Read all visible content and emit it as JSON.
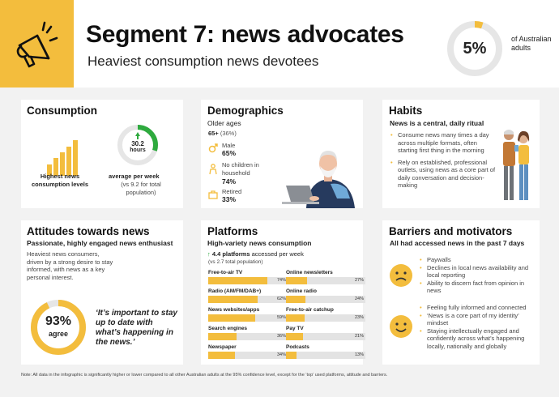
{
  "header": {
    "icon": "megaphone-icon",
    "title": "Segment 7: news advocates",
    "subtitle": "Heaviest consumption news devotees",
    "share_value": "5%",
    "share_fraction": 0.05,
    "share_label": "of Australian adults"
  },
  "consumption": {
    "title": "Consumption",
    "bars_icon": "rising-bars-icon",
    "levels_label": "Highest news consumption levels",
    "hours_value": "30.2",
    "hours_unit": "hours",
    "hours_fraction": 0.3,
    "week_label": "average per week",
    "week_compare": "(vs 9.2 for total population)"
  },
  "demographics": {
    "title": "Demographics",
    "subtitle": "Older ages",
    "age_group": "65+",
    "age_pct": "(36%)",
    "male_label": "Male",
    "male_value": "65%",
    "children_label": "No children in household",
    "children_value": "74%",
    "retired_label": "Retired",
    "retired_value": "33%"
  },
  "habits": {
    "title": "Habits",
    "subtitle": "News is a central, daily ritual",
    "bullets": [
      "Consume news many times a day across multiple formats, often starting first thing in the morning",
      "Rely on established, professional outlets, using news as a core part of daily conversation and decision-making"
    ]
  },
  "attitudes": {
    "title": "Attitudes towards news",
    "subtitle": "Passionate, highly engaged news enthusiast",
    "body": "Heaviest news consumers, driven by a strong desire to stay informed, with news as a key personal interest.",
    "agree_value": "93%",
    "agree_label": "agree",
    "agree_fraction": 0.93,
    "quote": "‘It’s important to stay up to date with what’s happening in the news.’"
  },
  "platforms": {
    "title": "Platforms",
    "subtitle": "High-variety news consumption",
    "count_value": "4.4 platforms",
    "count_text": "accessed per week",
    "count_compare": "(vs 2.7 total population)",
    "items": [
      {
        "label": "Free-to-air TV",
        "value": 74,
        "display": "74%"
      },
      {
        "label": "Radio (AM/FM/DAB+)",
        "value": 62,
        "display": "62%"
      },
      {
        "label": "News websites/apps",
        "value": 59,
        "display": "59%"
      },
      {
        "label": "Search engines",
        "value": 36,
        "display": "36%"
      },
      {
        "label": "Newspaper",
        "value": 34,
        "display": "34%"
      },
      {
        "label": "Online newsletters",
        "value": 27,
        "display": "27%"
      },
      {
        "label": "Online radio",
        "value": 24,
        "display": "24%"
      },
      {
        "label": "Free-to-air catchup",
        "value": 23,
        "display": "23%"
      },
      {
        "label": "Pay TV",
        "value": 21,
        "display": "21%"
      },
      {
        "label": "Podcasts",
        "value": 13,
        "display": "13%"
      }
    ]
  },
  "barriers": {
    "title": "Barriers and motivators",
    "subtitle": "All had accessed news in the past 7 days",
    "barrier_icon": "sad-face-icon",
    "motivator_icon": "happy-face-icon",
    "barrier_bullets": [
      "Paywalls",
      "Declines in local news availability and local reporting",
      "Ability to discern fact from opinion in news"
    ],
    "motivator_bullets": [
      "Feeling fully informed and connected",
      "‘News is a core part of my identity’ mindset",
      "Staying intellectually engaged and confidently across what’s happening locally, nationally and globally"
    ]
  },
  "note": "Note: All data in the infographic is significantly higher or lower compared to all other Australian adults at the 95% confidence level, except for the ‘top’ used platforms, attitude and barriers.",
  "colors": {
    "accent": "#f3bd3d",
    "green": "#2eaa3e",
    "ring_track": "#e6e6e6",
    "background": "#f2f2f2"
  }
}
